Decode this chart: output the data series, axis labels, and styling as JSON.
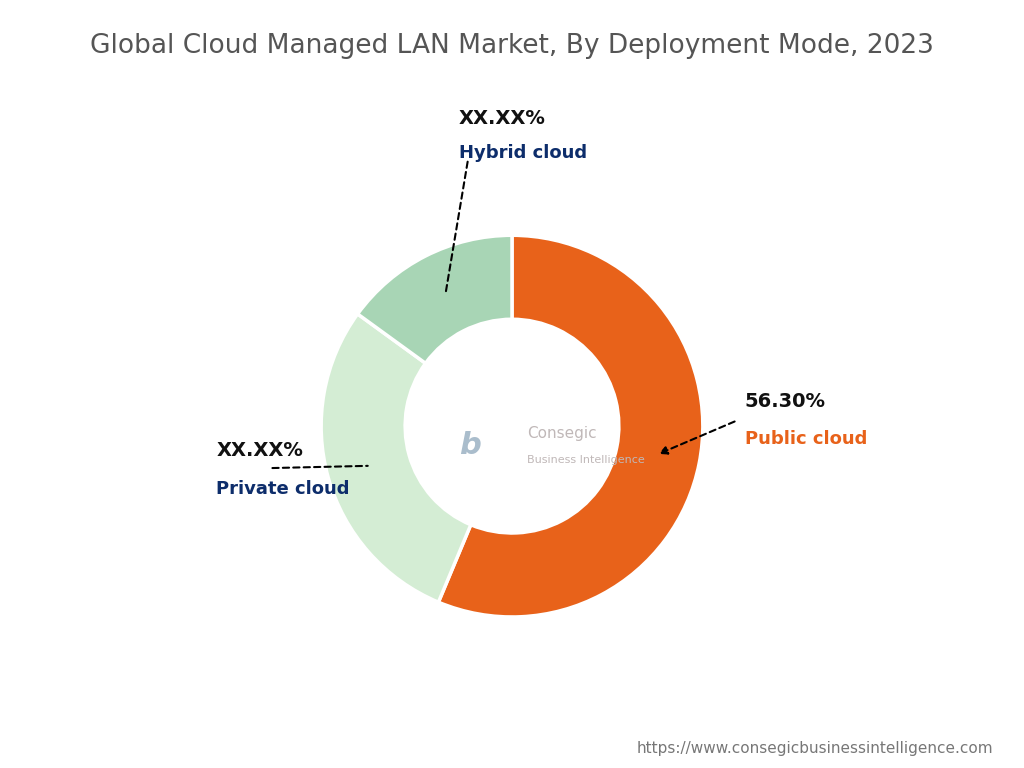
{
  "title": "Global Cloud Managed LAN Market, By Deployment Mode, 2023",
  "title_fontsize": 19,
  "title_color": "#555555",
  "segments": [
    {
      "label": "Public cloud",
      "value": 56.3,
      "color": "#E8621A",
      "display_value": "56.30%",
      "value_color": "#111111",
      "label_color": "#E8621A"
    },
    {
      "label": "Private cloud",
      "value": 28.7,
      "color": "#D4EDD4",
      "display_value": "XX.XX%",
      "value_color": "#111111",
      "label_color": "#0D2D6B"
    },
    {
      "label": "Hybrid cloud",
      "value": 15.0,
      "color": "#A8D5B5",
      "display_value": "XX.XX%",
      "value_color": "#111111",
      "label_color": "#0D2D6B"
    }
  ],
  "donut_width": 0.44,
  "background_color": "#FFFFFF",
  "footer_text": "https://www.consegicbusinessintelligence.com",
  "footer_color": "#777777",
  "footer_fontsize": 11,
  "center_logo_text": "Consegic",
  "center_sub_text": "Business Intelligence"
}
